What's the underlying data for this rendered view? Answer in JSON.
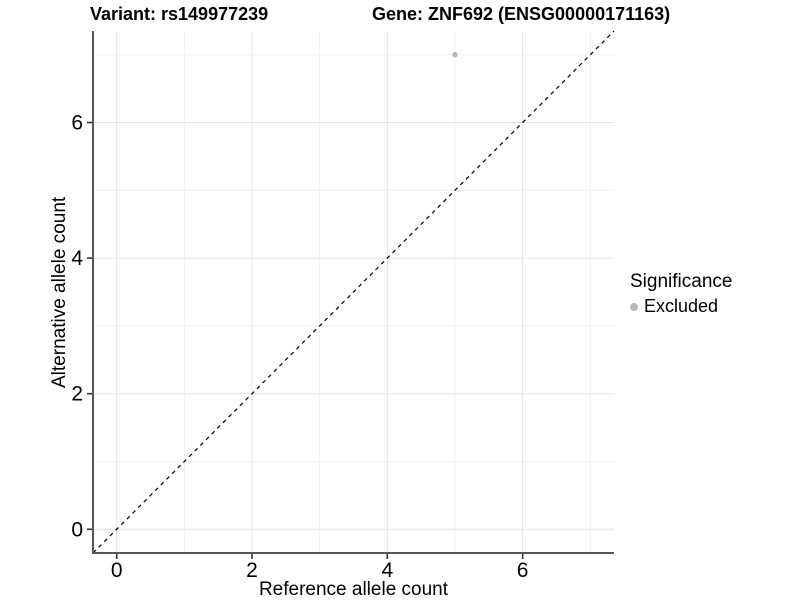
{
  "chart_data": {
    "type": "scatter",
    "title_parts": [
      "Variant: rs149977239",
      "Gene: ZNF692 (ENSG00000171163)"
    ],
    "xlabel": "Reference allele count",
    "ylabel": "Alternative allele count",
    "xlim": [
      -0.35,
      7.35
    ],
    "ylim": [
      -0.35,
      7.35
    ],
    "x_major_ticks": [
      0,
      2,
      4,
      6
    ],
    "y_major_ticks": [
      0,
      2,
      4,
      6
    ],
    "x_minor_gridlines": [
      1,
      3,
      5,
      7
    ],
    "y_minor_gridlines": [
      1,
      3,
      5,
      7
    ],
    "grid": "major and minor, light gray on white",
    "legend_position": "right",
    "series": [
      {
        "name": "Excluded",
        "marker": "circle",
        "color": "#b9b9b9",
        "points": [
          {
            "x": 5,
            "y": 7
          }
        ]
      }
    ],
    "reference_line": {
      "kind": "identity y=x",
      "style": "dashed",
      "color": "#000000",
      "from": {
        "x": -0.35,
        "y": -0.35
      },
      "to": {
        "x": 7.35,
        "y": 7.35
      }
    },
    "legend": {
      "title": "Significance",
      "items": [
        {
          "label": "Excluded",
          "color": "#b9b9b9",
          "marker": "circle"
        }
      ]
    }
  },
  "colors": {
    "background": "#ffffff",
    "major_grid": "#e3e3e3",
    "minor_grid": "#f0f0f0",
    "axis_line": "#555555",
    "tick_mark": "#333333",
    "text": "#000000",
    "point": "#b9b9b9"
  }
}
